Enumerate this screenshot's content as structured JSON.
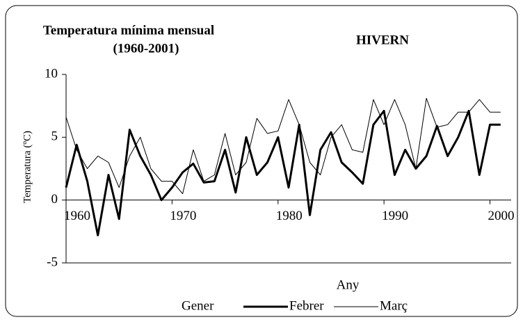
{
  "chart_data": {
    "type": "line",
    "title": "Temperatura mínima mensual",
    "subtitle": "(1960-2001)",
    "annotation": "HIVERN",
    "y_label": "Temperatura (ºC)",
    "x_label": "Any",
    "x": [
      1960,
      1961,
      1962,
      1963,
      1964,
      1965,
      1966,
      1967,
      1968,
      1969,
      1970,
      1971,
      1972,
      1973,
      1974,
      1975,
      1976,
      1977,
      1978,
      1979,
      1980,
      1981,
      1982,
      1983,
      1984,
      1985,
      1986,
      1987,
      1988,
      1989,
      1990,
      1991,
      1992,
      1993,
      1994,
      1995,
      1996,
      1997,
      1998,
      1999,
      2000,
      2001
    ],
    "series": [
      {
        "name": "Gener",
        "color": "#ffffff",
        "width": 1,
        "values": [
          null,
          null,
          null,
          null,
          null,
          null,
          null,
          null,
          null,
          null,
          null,
          null,
          null,
          null,
          null,
          null,
          null,
          null,
          null,
          null,
          null,
          null,
          null,
          null,
          null,
          null,
          null,
          null,
          null,
          null,
          null,
          null,
          null,
          null,
          null,
          null,
          null,
          null,
          null,
          null,
          null,
          null
        ]
      },
      {
        "name": "Febrer",
        "color": "#000000",
        "width": 3,
        "values": [
          1.0,
          4.4,
          1.5,
          -2.8,
          2.0,
          -1.5,
          5.6,
          3.5,
          2.0,
          0.0,
          1.0,
          2.2,
          2.9,
          1.4,
          1.5,
          4.0,
          0.6,
          5.0,
          2.0,
          3.0,
          5.0,
          1.0,
          6.0,
          -1.2,
          4.0,
          5.4,
          3.0,
          2.2,
          1.3,
          6.0,
          7.1,
          2.0,
          4.0,
          2.5,
          3.5,
          5.9,
          3.5,
          5.0,
          7.1,
          2.0,
          6.0,
          6.0
        ]
      },
      {
        "name": "Març",
        "color": "#000000",
        "width": 1,
        "values": [
          6.6,
          4.0,
          2.5,
          3.5,
          3.0,
          1.0,
          3.5,
          5.0,
          2.5,
          1.5,
          1.5,
          0.5,
          4.0,
          1.5,
          2.0,
          5.3,
          2.0,
          3.0,
          6.5,
          5.3,
          5.5,
          8.0,
          6.0,
          3.0,
          2.0,
          5.0,
          6.0,
          4.0,
          3.8,
          8.0,
          6.0,
          8.0,
          6.0,
          2.5,
          8.1,
          5.8,
          6.0,
          7.0,
          7.0,
          8.0,
          7.0,
          7.0
        ]
      }
    ],
    "xlim": [
      1960,
      2002
    ],
    "xticks": [
      1960,
      1970,
      1980,
      1990,
      2000
    ],
    "ylim": [
      -5,
      10
    ],
    "yticks": [
      -5,
      0,
      5,
      10
    ],
    "grid": false
  }
}
